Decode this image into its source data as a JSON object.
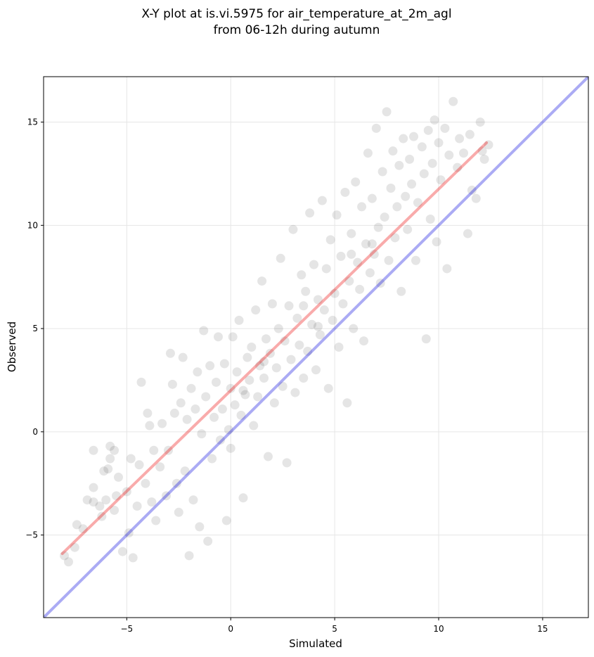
{
  "chart_data": {
    "type": "scatter",
    "title_lines": [
      "X-Y plot at is.vi.5975 for air_temperature_at_2m_agl",
      "from 06-12h during autumn"
    ],
    "xlabel": "Simulated",
    "ylabel": "Observed",
    "xlim": [
      -9,
      17.2
    ],
    "ylim": [
      -9,
      17.2
    ],
    "xticks": [
      -5,
      0,
      5,
      10,
      15
    ],
    "yticks": [
      -5,
      0,
      5,
      10,
      15
    ],
    "xtick_labels": [
      "−5",
      "0",
      "5",
      "10",
      "15"
    ],
    "ytick_labels": [
      "−5",
      "0",
      "5",
      "10",
      "15"
    ],
    "grid": true,
    "colors": {
      "points": "#000000",
      "identity_line": "#0000dd",
      "fit_line": "#ee0000",
      "grid": "#e6e6e6"
    },
    "identity_line": {
      "from": [
        -9,
        -9
      ],
      "to": [
        17.2,
        17.2
      ]
    },
    "fit_line": {
      "from": [
        -8.1,
        -5.9
      ],
      "to": [
        12.3,
        14.0
      ]
    },
    "points": [
      [
        -8.0,
        -6.0
      ],
      [
        -7.8,
        -6.3
      ],
      [
        -7.5,
        -5.6
      ],
      [
        -7.4,
        -4.5
      ],
      [
        -7.1,
        -4.7
      ],
      [
        -6.9,
        -3.3
      ],
      [
        -6.6,
        -3.4
      ],
      [
        -6.6,
        -2.7
      ],
      [
        -6.6,
        -0.9
      ],
      [
        -6.3,
        -3.6
      ],
      [
        -6.2,
        -4.1
      ],
      [
        -6.1,
        -1.9
      ],
      [
        -6.0,
        -3.3
      ],
      [
        -5.9,
        -1.8
      ],
      [
        -5.8,
        -1.3
      ],
      [
        -5.8,
        -0.7
      ],
      [
        -5.6,
        -0.9
      ],
      [
        -5.6,
        -3.8
      ],
      [
        -5.5,
        -3.1
      ],
      [
        -5.4,
        -2.2
      ],
      [
        -5.2,
        -5.8
      ],
      [
        -5.0,
        -2.9
      ],
      [
        -4.9,
        -4.9
      ],
      [
        -4.8,
        -1.3
      ],
      [
        -4.7,
        -6.1
      ],
      [
        -4.5,
        -3.6
      ],
      [
        -4.4,
        -1.6
      ],
      [
        -4.3,
        2.4
      ],
      [
        -4.1,
        -2.5
      ],
      [
        -4.0,
        0.9
      ],
      [
        -3.9,
        0.3
      ],
      [
        -3.8,
        -3.4
      ],
      [
        -3.7,
        -0.9
      ],
      [
        -3.6,
        -4.3
      ],
      [
        -3.4,
        -1.7
      ],
      [
        -3.3,
        0.4
      ],
      [
        -3.1,
        -3.1
      ],
      [
        -3.0,
        -0.9
      ],
      [
        -2.9,
        3.8
      ],
      [
        -2.8,
        2.3
      ],
      [
        -2.7,
        0.9
      ],
      [
        -2.6,
        -2.5
      ],
      [
        -2.5,
        -3.9
      ],
      [
        -2.4,
        1.4
      ],
      [
        -2.3,
        3.6
      ],
      [
        -2.2,
        -1.9
      ],
      [
        -2.1,
        0.6
      ],
      [
        -2.0,
        -6.0
      ],
      [
        -1.9,
        2.1
      ],
      [
        -1.8,
        -3.3
      ],
      [
        -1.7,
        1.1
      ],
      [
        -1.6,
        2.9
      ],
      [
        -1.5,
        -4.6
      ],
      [
        -1.4,
        -0.1
      ],
      [
        -1.3,
        4.9
      ],
      [
        -1.2,
        1.7
      ],
      [
        -1.1,
        -5.3
      ],
      [
        -1.0,
        3.2
      ],
      [
        -0.9,
        -1.3
      ],
      [
        -0.8,
        0.7
      ],
      [
        -0.7,
        2.4
      ],
      [
        -0.6,
        4.6
      ],
      [
        -0.5,
        -0.4
      ],
      [
        -0.4,
        1.1
      ],
      [
        -0.3,
        3.3
      ],
      [
        -0.2,
        -4.3
      ],
      [
        -0.1,
        0.1
      ],
      [
        0.0,
        2.1
      ],
      [
        0.0,
        -0.8
      ],
      [
        0.1,
        4.6
      ],
      [
        0.2,
        1.3
      ],
      [
        0.3,
        2.9
      ],
      [
        0.4,
        5.4
      ],
      [
        0.5,
        0.8
      ],
      [
        0.6,
        -3.2
      ],
      [
        0.7,
        1.8
      ],
      [
        0.8,
        3.6
      ],
      [
        0.9,
        2.5
      ],
      [
        1.0,
        4.1
      ],
      [
        1.1,
        0.3
      ],
      [
        1.2,
        5.9
      ],
      [
        1.3,
        1.7
      ],
      [
        1.4,
        3.2
      ],
      [
        1.5,
        7.3
      ],
      [
        1.6,
        2.6
      ],
      [
        1.7,
        4.5
      ],
      [
        1.8,
        -1.2
      ],
      [
        1.9,
        3.8
      ],
      [
        2.0,
        6.2
      ],
      [
        2.1,
        1.4
      ],
      [
        2.2,
        3.1
      ],
      [
        2.3,
        5.0
      ],
      [
        2.4,
        8.4
      ],
      [
        2.5,
        2.2
      ],
      [
        2.6,
        4.4
      ],
      [
        2.7,
        -1.5
      ],
      [
        2.8,
        6.1
      ],
      [
        2.9,
        3.5
      ],
      [
        3.0,
        9.8
      ],
      [
        3.1,
        1.9
      ],
      [
        3.2,
        5.5
      ],
      [
        3.3,
        4.2
      ],
      [
        3.4,
        7.6
      ],
      [
        3.5,
        2.6
      ],
      [
        3.6,
        6.8
      ],
      [
        3.7,
        3.9
      ],
      [
        3.8,
        10.6
      ],
      [
        3.9,
        5.2
      ],
      [
        4.0,
        8.1
      ],
      [
        4.1,
        3.0
      ],
      [
        4.2,
        6.4
      ],
      [
        4.3,
        4.7
      ],
      [
        4.4,
        11.2
      ],
      [
        4.5,
        5.9
      ],
      [
        4.6,
        7.9
      ],
      [
        4.7,
        2.1
      ],
      [
        4.8,
        9.3
      ],
      [
        4.9,
        5.4
      ],
      [
        5.0,
        6.7
      ],
      [
        5.1,
        10.5
      ],
      [
        5.2,
        4.1
      ],
      [
        5.3,
        8.5
      ],
      [
        5.4,
        6.2
      ],
      [
        5.5,
        11.6
      ],
      [
        5.6,
        1.4
      ],
      [
        5.7,
        7.3
      ],
      [
        5.8,
        9.6
      ],
      [
        5.9,
        5.0
      ],
      [
        6.0,
        12.1
      ],
      [
        6.1,
        8.2
      ],
      [
        6.2,
        6.9
      ],
      [
        6.3,
        10.9
      ],
      [
        6.4,
        4.4
      ],
      [
        6.5,
        9.1
      ],
      [
        6.6,
        13.5
      ],
      [
        6.7,
        7.7
      ],
      [
        6.8,
        11.3
      ],
      [
        6.9,
        8.6
      ],
      [
        7.0,
        14.7
      ],
      [
        7.1,
        9.9
      ],
      [
        7.2,
        7.2
      ],
      [
        7.3,
        12.6
      ],
      [
        7.4,
        10.4
      ],
      [
        7.5,
        15.5
      ],
      [
        7.6,
        8.3
      ],
      [
        7.7,
        11.8
      ],
      [
        7.8,
        13.6
      ],
      [
        7.9,
        9.4
      ],
      [
        8.0,
        10.9
      ],
      [
        8.1,
        12.9
      ],
      [
        8.2,
        6.8
      ],
      [
        8.3,
        14.2
      ],
      [
        8.4,
        11.4
      ],
      [
        8.5,
        9.8
      ],
      [
        8.6,
        13.2
      ],
      [
        8.7,
        12.0
      ],
      [
        8.8,
        14.3
      ],
      [
        8.9,
        8.3
      ],
      [
        9.0,
        11.1
      ],
      [
        9.2,
        13.8
      ],
      [
        9.3,
        12.5
      ],
      [
        9.4,
        4.5
      ],
      [
        9.5,
        14.6
      ],
      [
        9.6,
        10.3
      ],
      [
        9.7,
        13.0
      ],
      [
        9.8,
        15.1
      ],
      [
        9.9,
        9.2
      ],
      [
        10.0,
        14.0
      ],
      [
        10.1,
        12.2
      ],
      [
        10.3,
        14.7
      ],
      [
        10.4,
        7.9
      ],
      [
        10.5,
        13.4
      ],
      [
        10.7,
        16.0
      ],
      [
        10.9,
        12.8
      ],
      [
        11.0,
        14.2
      ],
      [
        11.2,
        13.5
      ],
      [
        11.4,
        9.6
      ],
      [
        11.5,
        14.4
      ],
      [
        11.6,
        11.7
      ],
      [
        11.8,
        11.3
      ],
      [
        12.0,
        15.0
      ],
      [
        12.1,
        13.6
      ],
      [
        12.2,
        13.2
      ],
      [
        12.4,
        13.9
      ],
      [
        3.5,
        6.1
      ],
      [
        4.2,
        5.1
      ],
      [
        1.6,
        3.4
      ],
      [
        6.8,
        9.1
      ],
      [
        0.6,
        2.0
      ],
      [
        5.8,
        8.6
      ]
    ]
  }
}
